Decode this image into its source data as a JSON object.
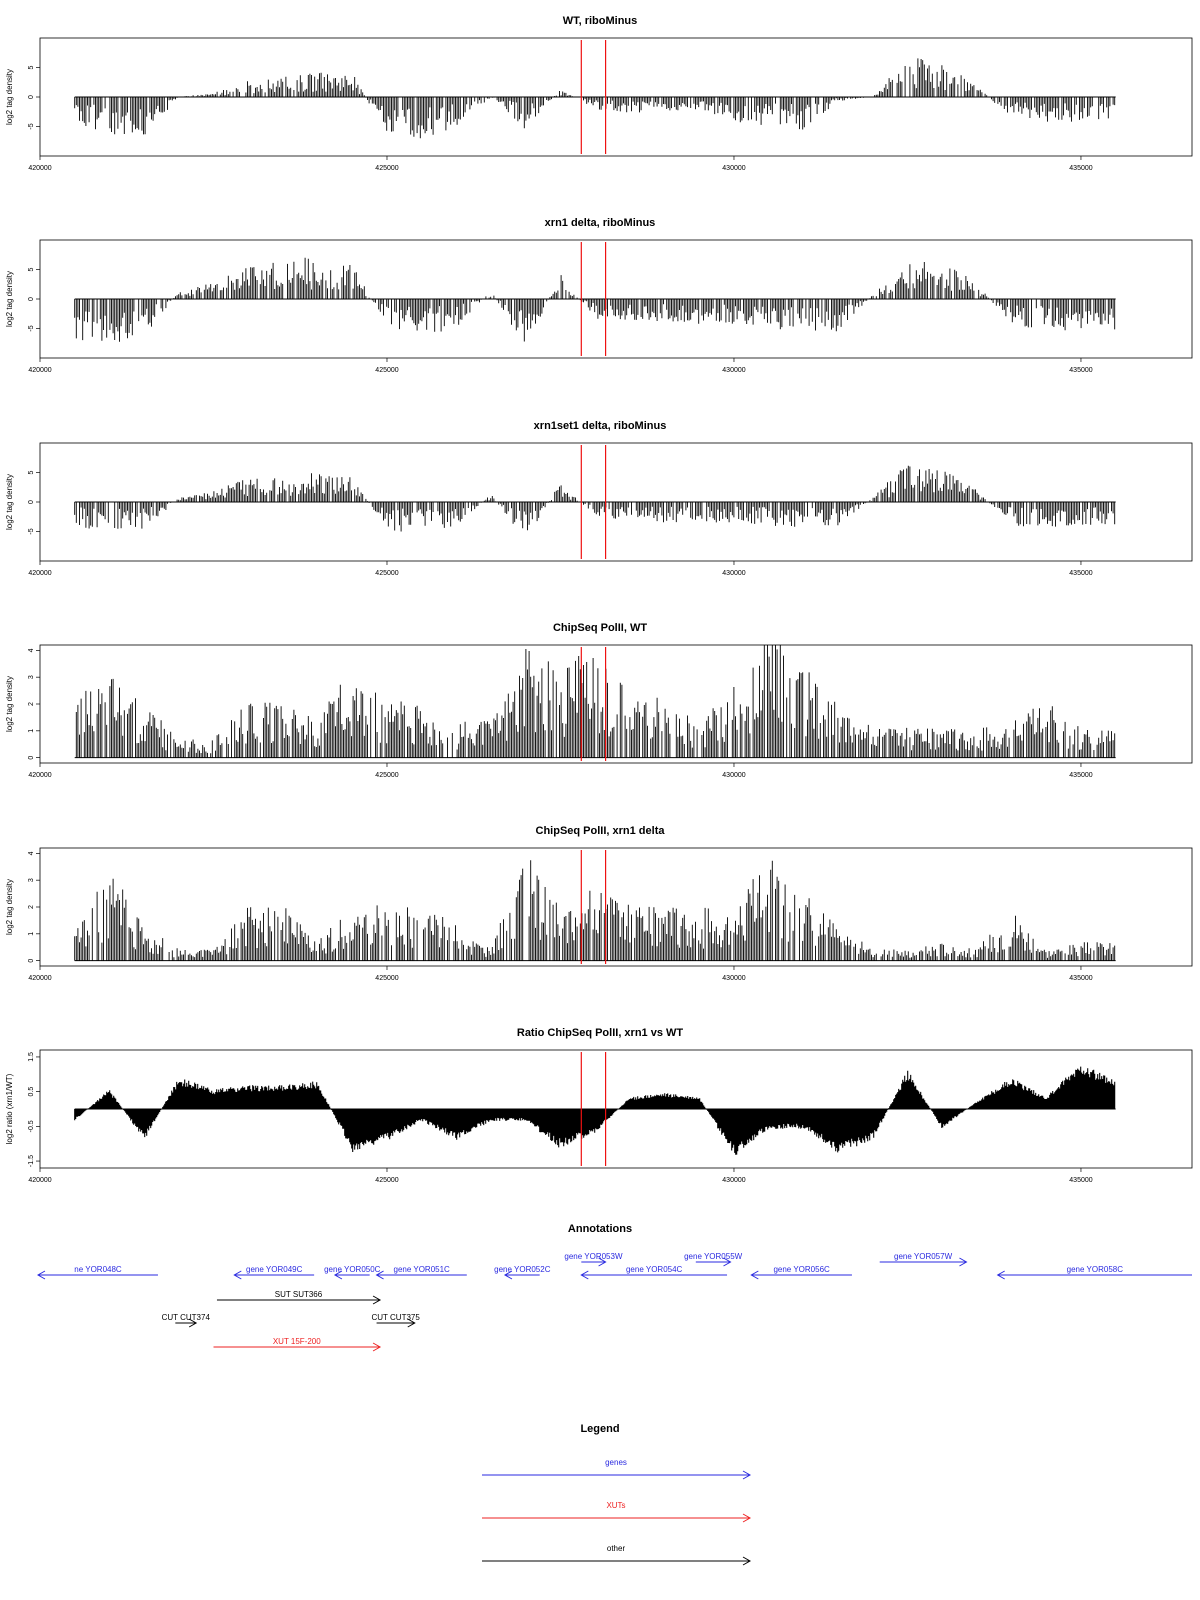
{
  "figure": {
    "annotation_title": "Annotations",
    "legend_title": "Legend"
  },
  "chart_data": [
    {
      "type": "bar",
      "title": "WT, riboMinus",
      "ylabel": "log2 tag density",
      "xlim": [
        420000,
        436600
      ],
      "ylim": [
        -10,
        10
      ],
      "yticks": [
        -5,
        0,
        5
      ],
      "xticks": [
        420000,
        425000,
        430000,
        435000
      ],
      "markers": [
        427800,
        428150
      ],
      "x": [
        420500,
        421000,
        421500,
        422000,
        422500,
        423000,
        423500,
        424000,
        424500,
        425000,
        425500,
        426000,
        426500,
        427000,
        427500,
        428000,
        428500,
        429000,
        429500,
        430000,
        430500,
        431000,
        431500,
        432000,
        432500,
        433000,
        433500,
        434000,
        434500,
        435000,
        435500
      ],
      "values": [
        -3.5,
        -4.5,
        -5,
        0,
        0.5,
        2,
        2.5,
        3,
        3,
        -5,
        -5,
        -4,
        0,
        -4,
        1,
        -1.5,
        -2,
        -2,
        -1.5,
        -3,
        -3.5,
        -4,
        -0.5,
        0,
        5,
        4,
        1.5,
        -3,
        -3,
        -3,
        -3
      ]
    },
    {
      "type": "bar",
      "title": "xrn1 delta, riboMinus",
      "ylabel": "log2 tag density",
      "xlim": [
        420000,
        436600
      ],
      "ylim": [
        -10,
        10
      ],
      "yticks": [
        -5,
        0,
        5
      ],
      "xticks": [
        420000,
        425000,
        430000,
        435000
      ],
      "markers": [
        427800,
        428150
      ],
      "x": [
        420500,
        421000,
        421500,
        422000,
        422500,
        423000,
        423500,
        424000,
        424500,
        425000,
        425500,
        426000,
        426500,
        427000,
        427500,
        428000,
        428500,
        429000,
        429500,
        430000,
        430500,
        431000,
        431500,
        432000,
        432500,
        433000,
        433500,
        434000,
        434500,
        435000,
        435500
      ],
      "values": [
        -5,
        -5.5,
        -5,
        1,
        2,
        4,
        5,
        5,
        4.5,
        -4,
        -4.5,
        -3.5,
        1,
        -6,
        3,
        -2.5,
        -3,
        -3,
        -3,
        -3,
        -3.5,
        -4,
        -4,
        0.5,
        5,
        4.5,
        2,
        -3.5,
        -4,
        -4,
        -4
      ]
    },
    {
      "type": "bar",
      "title": "xrn1set1 delta, riboMinus",
      "ylabel": "log2 tag density",
      "xlim": [
        420000,
        436600
      ],
      "ylim": [
        -10,
        10
      ],
      "yticks": [
        -5,
        0,
        5
      ],
      "xticks": [
        420000,
        425000,
        430000,
        435000
      ],
      "markers": [
        427800,
        428150
      ],
      "x": [
        420500,
        421000,
        421500,
        422000,
        422500,
        423000,
        423500,
        424000,
        424500,
        425000,
        425500,
        426000,
        426500,
        427000,
        427500,
        428000,
        428500,
        429000,
        429500,
        430000,
        430500,
        431000,
        431500,
        432000,
        432500,
        433000,
        433500,
        434000,
        434500,
        435000,
        435500
      ],
      "values": [
        -3,
        -3.5,
        -3.5,
        0.5,
        1.5,
        3,
        3.5,
        3.5,
        3,
        -3.5,
        -4,
        -3,
        1,
        -5,
        2.5,
        -2,
        -2.5,
        -2.5,
        -2.5,
        -2.5,
        -3,
        -3,
        -3,
        0.5,
        5,
        4,
        1.5,
        -3,
        -3,
        -3,
        -3
      ]
    },
    {
      "type": "bar",
      "title": "ChipSeq PolII, WT",
      "ylabel": "log2 tag density",
      "xlim": [
        420000,
        436600
      ],
      "ylim": [
        -0.2,
        4.2
      ],
      "yticks": [
        0,
        1,
        2,
        3,
        4
      ],
      "xticks": [
        420000,
        425000,
        430000,
        435000
      ],
      "markers": [
        427800,
        428150
      ],
      "x": [
        420500,
        421000,
        421500,
        422000,
        422500,
        423000,
        423500,
        424000,
        424500,
        425000,
        425500,
        426000,
        426500,
        427000,
        427500,
        428000,
        428500,
        429000,
        429500,
        430000,
        430500,
        431000,
        431500,
        432000,
        432500,
        433000,
        433500,
        434000,
        434500,
        435000,
        435500
      ],
      "values": [
        1.5,
        2.5,
        1.5,
        0.5,
        0.5,
        1.5,
        1.5,
        1,
        2.5,
        1.5,
        1.5,
        1,
        1,
        3,
        2.5,
        3,
        2,
        1.5,
        1,
        2,
        3.5,
        2.5,
        1.5,
        0.8,
        0.8,
        0.8,
        0.8,
        1,
        1.5,
        0.8,
        0.8
      ]
    },
    {
      "type": "bar",
      "title": "ChipSeq PolII, xrn1 delta",
      "ylabel": "log2 tag density",
      "xlim": [
        420000,
        436600
      ],
      "ylim": [
        -0.2,
        4.2
      ],
      "yticks": [
        0,
        1,
        2,
        3,
        4
      ],
      "xticks": [
        420000,
        425000,
        430000,
        435000
      ],
      "markers": [
        427800,
        428150
      ],
      "x": [
        420500,
        421000,
        421500,
        422000,
        422500,
        423000,
        423500,
        424000,
        424500,
        425000,
        425500,
        426000,
        426500,
        427000,
        427500,
        428000,
        428500,
        429000,
        429500,
        430000,
        430500,
        431000,
        431500,
        432000,
        432500,
        433000,
        433500,
        434000,
        434500,
        435000,
        435500
      ],
      "values": [
        1,
        2.5,
        1,
        0.3,
        0.3,
        1.5,
        1.5,
        0.5,
        1.5,
        1.5,
        1.5,
        1,
        0.3,
        3,
        1.5,
        2,
        1.5,
        1.5,
        1.5,
        1.5,
        2.8,
        2,
        1,
        0.3,
        0.3,
        0.5,
        0.3,
        1.5,
        0.3,
        0.5,
        0.5
      ]
    },
    {
      "type": "area",
      "title": "Ratio ChipSeq PolII, xrn1 vs WT",
      "ylabel": "log2 ratio (xrn1/WT)",
      "xlim": [
        420000,
        436600
      ],
      "ylim": [
        -1.7,
        1.7
      ],
      "yticks": [
        -1.5,
        -0.5,
        0.5,
        1.5
      ],
      "xticks": [
        420000,
        425000,
        430000,
        435000
      ],
      "markers": [
        427800,
        428150
      ],
      "x": [
        420500,
        421000,
        421500,
        422000,
        422500,
        423000,
        423500,
        424000,
        424500,
        425000,
        425500,
        426000,
        426500,
        427000,
        427500,
        428000,
        428500,
        429000,
        429500,
        430000,
        430500,
        431000,
        431500,
        432000,
        432500,
        433000,
        433500,
        434000,
        434500,
        435000,
        435500
      ],
      "values": [
        -0.3,
        0.5,
        -0.8,
        0.8,
        0.5,
        0.6,
        0.6,
        0.7,
        -1.1,
        -0.8,
        -0.3,
        -0.8,
        -0.3,
        -0.3,
        -1,
        -0.6,
        0.3,
        0.4,
        0.3,
        -1.2,
        -0.5,
        -0.5,
        -1.1,
        -0.8,
        1,
        -0.5,
        0.2,
        0.8,
        0.3,
        1.2,
        0.7
      ]
    },
    {
      "type": "table",
      "title": "Annotations",
      "xlim": [
        420000,
        436600
      ],
      "features": [
        {
          "label": "ne YOR048C",
          "start": 419000,
          "end": 421700,
          "dir": "left",
          "category": "genes",
          "row": 0
        },
        {
          "label": "gene YOR049C",
          "start": 422800,
          "end": 423950,
          "dir": "left",
          "category": "genes",
          "row": 0
        },
        {
          "label": "gene YOR050C",
          "start": 424250,
          "end": 424750,
          "dir": "left",
          "category": "genes",
          "row": 0
        },
        {
          "label": "gene YOR051C",
          "start": 424850,
          "end": 426150,
          "dir": "left",
          "category": "genes",
          "row": 0
        },
        {
          "label": "gene YOR052C",
          "start": 426700,
          "end": 427200,
          "dir": "left",
          "category": "genes",
          "row": 0
        },
        {
          "label": "gene YOR053W",
          "start": 427800,
          "end": 428150,
          "dir": "right",
          "category": "genes",
          "row": -1
        },
        {
          "label": "gene YOR054C",
          "start": 427800,
          "end": 429900,
          "dir": "left",
          "category": "genes",
          "row": 0
        },
        {
          "label": "gene YOR055W",
          "start": 429450,
          "end": 429950,
          "dir": "right",
          "category": "genes",
          "row": -1
        },
        {
          "label": "gene YOR056C",
          "start": 430250,
          "end": 431700,
          "dir": "left",
          "category": "genes",
          "row": 0
        },
        {
          "label": "gene YOR057W",
          "start": 432100,
          "end": 433350,
          "dir": "right",
          "category": "genes",
          "row": -1
        },
        {
          "label": "gene YOR058C",
          "start": 433800,
          "end": 436600,
          "dir": "left",
          "category": "genes",
          "row": 0
        },
        {
          "label": "SUT SUT366",
          "start": 422550,
          "end": 424900,
          "dir": "right",
          "category": "other",
          "row": 1
        },
        {
          "label": "CUT CUT374",
          "start": 421950,
          "end": 422250,
          "dir": "right",
          "category": "other",
          "row": 2
        },
        {
          "label": "CUT CUT375",
          "start": 424850,
          "end": 425400,
          "dir": "right",
          "category": "other",
          "row": 2
        },
        {
          "label": "XUT 15F-200",
          "start": 422500,
          "end": 424900,
          "dir": "right",
          "category": "XUTs",
          "row": 3
        }
      ]
    },
    {
      "type": "table",
      "title": "Legend",
      "entries": [
        {
          "label": "genes",
          "category": "genes"
        },
        {
          "label": "XUTs",
          "category": "XUTs"
        },
        {
          "label": "other",
          "category": "other"
        }
      ]
    }
  ],
  "colors": {
    "genes": "#2a2ae0",
    "XUTs": "#ee2222",
    "other": "#000000",
    "marker": "#ee1111",
    "data": "#000000"
  }
}
